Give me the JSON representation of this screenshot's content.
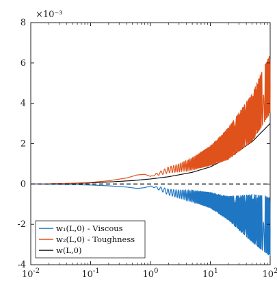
{
  "chart_data": {
    "type": "line",
    "xscale": "log",
    "xlim": [
      0.01,
      100
    ],
    "ylim": [
      -0.004,
      0.008
    ],
    "y_multiplier_label": "×10⁻³",
    "x_ticks": [
      {
        "value": 0.01,
        "base": "10",
        "exp": "-2"
      },
      {
        "value": 0.1,
        "base": "10",
        "exp": "-1"
      },
      {
        "value": 1,
        "base": "10",
        "exp": "0"
      },
      {
        "value": 10,
        "base": "10",
        "exp": "1"
      },
      {
        "value": 100,
        "base": "10",
        "exp": "2"
      }
    ],
    "y_ticks": [
      {
        "value": -0.004,
        "label": "-4"
      },
      {
        "value": -0.002,
        "label": "-2"
      },
      {
        "value": 0,
        "label": "0"
      },
      {
        "value": 0.002,
        "label": "2"
      },
      {
        "value": 0.004,
        "label": "4"
      },
      {
        "value": 0.006,
        "label": "6"
      },
      {
        "value": 0.008,
        "label": "8"
      }
    ],
    "grid": false,
    "legend_position": "bottom-left",
    "colors": {
      "viscous": "#1f77c4",
      "toughness": "#e0521b",
      "total": "#111111",
      "zero_line": "#111111"
    },
    "legend": [
      {
        "key": "viscous",
        "label": "w₁(L,0) - Viscous"
      },
      {
        "key": "toughness",
        "label": "w₂(L,0) - Toughness"
      },
      {
        "key": "total",
        "label": "w(L,0)"
      }
    ],
    "series": [
      {
        "key": "total",
        "x": [
          0.01,
          0.02,
          0.05,
          0.1,
          0.2,
          0.5,
          1,
          2,
          5,
          10,
          20,
          50,
          100
        ],
        "y": [
          0,
          1e-05,
          3e-05,
          6e-05,
          0.0001,
          0.00017,
          0.00025,
          0.00036,
          0.00058,
          0.00085,
          0.0013,
          0.0021,
          0.003
        ]
      },
      {
        "key": "toughness",
        "x": [
          0.01,
          0.02,
          0.05,
          0.1,
          0.2,
          0.4,
          0.6,
          0.8,
          1,
          1.5,
          2,
          3,
          5,
          10,
          20,
          50,
          100
        ],
        "y_center": [
          0,
          1e-05,
          4e-05,
          8e-05,
          0.00016,
          0.0003,
          0.00045,
          0.00048,
          0.00038,
          0.00055,
          0.0007,
          0.0008,
          0.001,
          0.0014,
          0.002,
          0.0033,
          0.005
        ],
        "y_amplitude": [
          0,
          0,
          0,
          0,
          0,
          0,
          0,
          0,
          0,
          0.0001,
          0.00015,
          0.0002,
          0.0003,
          0.0005,
          0.0008,
          0.0012,
          0.0015
        ]
      },
      {
        "key": "viscous",
        "x": [
          0.01,
          0.02,
          0.05,
          0.1,
          0.2,
          0.4,
          0.6,
          0.8,
          1,
          1.5,
          2,
          3,
          5,
          10,
          20,
          50,
          100
        ],
        "y_center": [
          0,
          -1e-05,
          -3e-05,
          -5e-05,
          -9e-05,
          -0.00015,
          -0.00022,
          -0.00018,
          -0.0001,
          -0.00025,
          -0.0004,
          -0.0005,
          -0.0006,
          -0.0008,
          -0.0012,
          -0.0017,
          -0.0021
        ],
        "y_amplitude": [
          0,
          0,
          0,
          0,
          0,
          0,
          0,
          0,
          0,
          0.0001,
          0.00015,
          0.0002,
          0.00028,
          0.0004,
          0.0006,
          0.0012,
          0.0015
        ]
      },
      {
        "key": "zero_line",
        "x": [
          0.01,
          100
        ],
        "y": [
          0,
          0
        ],
        "style": "dashed"
      }
    ]
  }
}
